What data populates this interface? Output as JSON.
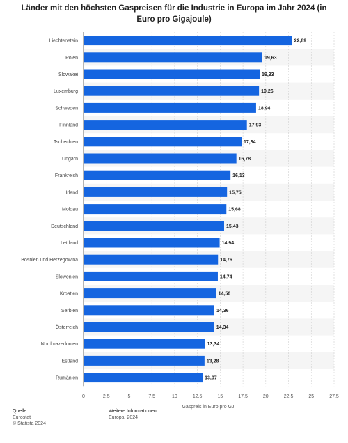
{
  "title": "Länder mit den höchsten Gaspreisen für die Industrie in Europa im Jahr 2024 (in Euro pro Gigajoule)",
  "footer": {
    "source_label": "Quelle",
    "source_value": "Eurostat",
    "copyright": "© Statista 2024",
    "info_label": "Weitere Informationen:",
    "info_value": "Europa; 2024"
  },
  "colors": {
    "bar": "#1565e0",
    "stripe": "#f5f5f5",
    "grid": "#cfcfcf",
    "axis": "#444444"
  },
  "chart_data": {
    "type": "bar",
    "orientation": "horizontal",
    "title": "Länder mit den höchsten Gaspreisen für die Industrie in Europa im Jahr 2024 (in Euro pro Gigajoule)",
    "xlabel": "Gaspreis in Euro pro GJ",
    "ylabel": "",
    "xlim": [
      0,
      27.5
    ],
    "ticks": [
      "0",
      "2,5",
      "5",
      "7,5",
      "10",
      "12,5",
      "15",
      "17,5",
      "20",
      "22,5",
      "25",
      "27,5"
    ],
    "grid": true,
    "categories": [
      "Liechtenstein",
      "Polen",
      "Slowakei",
      "Luxemburg",
      "Schweden",
      "Finnland",
      "Tschechien",
      "Ungarn",
      "Frankreich",
      "Irland",
      "Moldau",
      "Deutschland",
      "Lettland",
      "Bosnien und Herzegowina",
      "Slowenien",
      "Kroatien",
      "Serbien",
      "Österreich",
      "Nordmazedonien",
      "Estland",
      "Rumänien"
    ],
    "values": [
      22.89,
      19.63,
      19.33,
      19.26,
      18.94,
      17.93,
      17.34,
      16.78,
      16.13,
      15.75,
      15.68,
      15.43,
      14.94,
      14.76,
      14.74,
      14.56,
      14.36,
      14.34,
      13.34,
      13.28,
      13.07
    ],
    "value_labels": [
      "22,89",
      "19,63",
      "19,33",
      "19,26",
      "18,94",
      "17,93",
      "17,34",
      "16,78",
      "16,13",
      "15,75",
      "15,68",
      "15,43",
      "14,94",
      "14,76",
      "14,74",
      "14,56",
      "14,36",
      "14,34",
      "13,34",
      "13,28",
      "13,07"
    ]
  }
}
